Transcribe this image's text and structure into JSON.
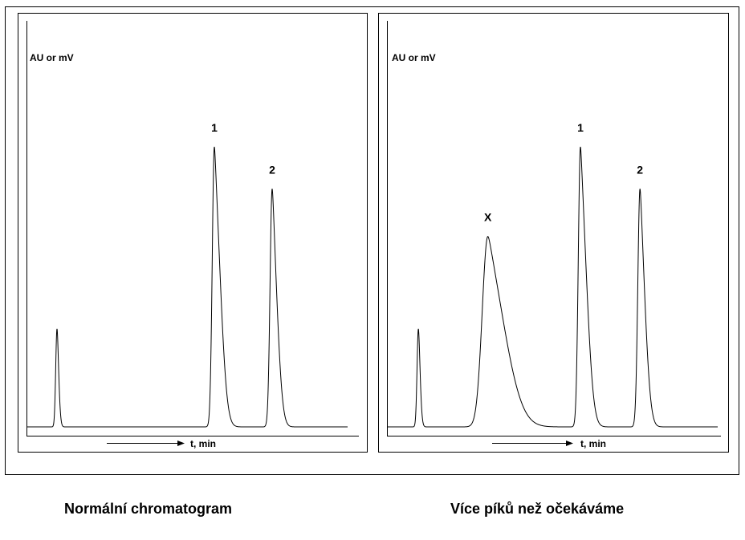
{
  "chart_data": [
    {
      "type": "line",
      "title": "",
      "ylabel": "AU or mV",
      "xlabel": "t, min",
      "caption": "Normální chromatogram",
      "xlim": [
        0,
        100
      ],
      "ylim": [
        0,
        100
      ],
      "peaks": [
        {
          "center": 9.5,
          "height": 35,
          "sigma": 0.4,
          "tail": 0.2,
          "label": ""
        },
        {
          "center": 58.5,
          "height": 100,
          "sigma": 0.65,
          "tail": 1.3,
          "label": "1"
        },
        {
          "center": 76.5,
          "height": 85,
          "sigma": 0.65,
          "tail": 1.0,
          "label": "2"
        }
      ]
    },
    {
      "type": "line",
      "title": "",
      "ylabel": "AU or mV",
      "xlabel": "t, min",
      "caption": "Více píků než očekáváme",
      "xlim": [
        0,
        100
      ],
      "ylim": [
        0,
        100
      ],
      "peaks": [
        {
          "center": 9.5,
          "height": 35,
          "sigma": 0.4,
          "tail": 0.2,
          "label": ""
        },
        {
          "center": 30.5,
          "height": 68,
          "sigma": 1.7,
          "tail": 3.5,
          "label": "X"
        },
        {
          "center": 58.5,
          "height": 100,
          "sigma": 0.65,
          "tail": 1.3,
          "label": "1"
        },
        {
          "center": 76.5,
          "height": 85,
          "sigma": 0.65,
          "tail": 1.0,
          "label": "2"
        }
      ]
    }
  ]
}
